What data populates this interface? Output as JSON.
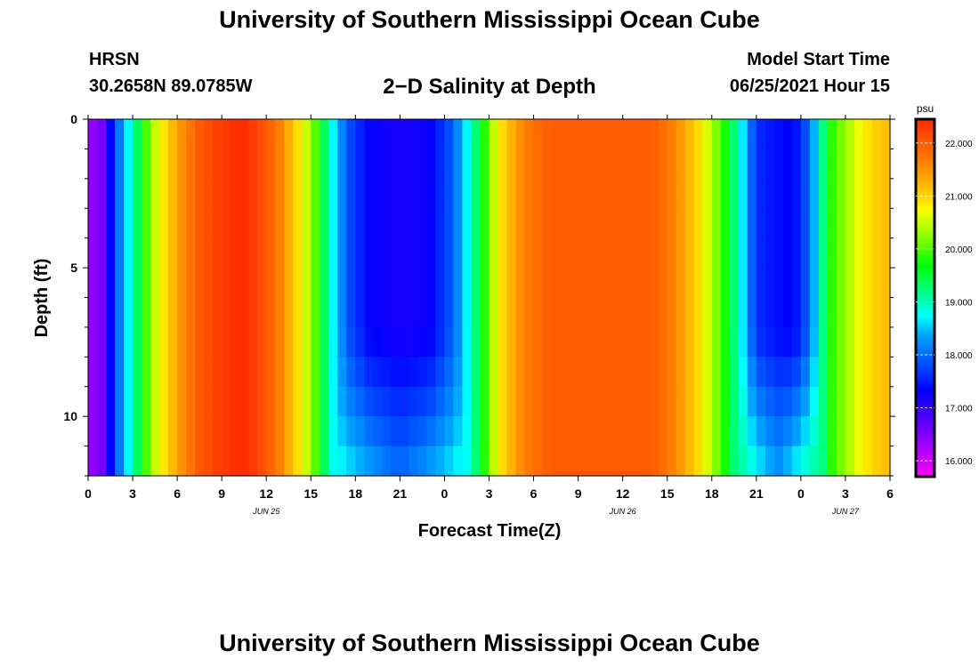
{
  "header": {
    "title": "University of Southern Mississippi Ocean Cube",
    "station": "HRSN",
    "coordinates": "30.2658N  89.0785W",
    "plot_title": "2−D Salinity at Depth",
    "model_start_label": "Model Start Time",
    "model_start_value": "06/25/2021 Hour 15"
  },
  "footer": {
    "title": "University of Southern Mississippi Ocean Cube"
  },
  "chart_data": {
    "type": "heatmap",
    "title": "2-D Salinity at Depth",
    "xlabel": "Forecast Time(Z)",
    "ylabel": "Depth (ft)",
    "x_range_hours": [
      0,
      54
    ],
    "y_range_ft": [
      0,
      12
    ],
    "x_tick_labels": [
      "0",
      "3",
      "6",
      "9",
      "12",
      "15",
      "18",
      "21",
      "0",
      "3",
      "6",
      "9",
      "12",
      "15",
      "18",
      "21",
      "0",
      "3",
      "6"
    ],
    "x_tick_hours": [
      0,
      3,
      6,
      9,
      12,
      15,
      18,
      21,
      24,
      27,
      30,
      33,
      36,
      39,
      42,
      45,
      48,
      51,
      54
    ],
    "date_labels": [
      {
        "text": "JUN 25",
        "hour": 12
      },
      {
        "text": "JUN 26",
        "hour": 36
      },
      {
        "text": "JUN 27",
        "hour": 51
      }
    ],
    "y_tick_values": [
      0,
      5,
      10
    ],
    "y_tick_labels": [
      "0",
      "5",
      "10"
    ],
    "colorbar": {
      "unit": "psu",
      "min": 15.7,
      "max": 22.45,
      "tick_values": [
        16,
        17,
        18,
        19,
        20,
        21,
        22
      ],
      "tick_labels": [
        "16.000",
        "17.000",
        "18.000",
        "19.000",
        "20.000",
        "21.000",
        "22.000"
      ]
    },
    "surface_salinity_profile": {
      "hours": [
        0,
        1,
        1.6,
        2.2,
        3,
        3.7,
        4.5,
        5.5,
        6.5,
        7.5,
        8.5,
        9.5,
        10.3,
        11,
        12,
        13,
        14,
        15,
        15.6,
        16.2,
        16.8,
        17.6,
        19,
        21,
        23,
        24.5,
        25.3,
        25.8,
        26.5,
        27.2,
        28,
        29,
        30,
        31,
        32,
        33,
        35,
        37,
        38,
        39,
        40,
        41,
        42,
        43,
        43.8,
        44.3,
        45,
        47,
        48,
        48.8,
        49.4,
        50,
        51,
        52,
        53,
        54
      ],
      "values": [
        16.3,
        16.6,
        17.5,
        18.2,
        19.0,
        19.8,
        20.5,
        21.1,
        21.6,
        22.0,
        22.2,
        22.35,
        22.45,
        22.35,
        22.0,
        21.6,
        21.0,
        20.3,
        19.7,
        19.0,
        18.4,
        17.8,
        17.3,
        17.15,
        17.25,
        17.9,
        18.5,
        19.0,
        19.6,
        20.4,
        21.0,
        21.5,
        21.8,
        21.95,
        22.0,
        22.0,
        22.0,
        22.0,
        21.95,
        21.75,
        21.4,
        21.0,
        20.4,
        19.7,
        19.0,
        18.4,
        17.6,
        17.3,
        17.5,
        18.3,
        19.1,
        19.8,
        20.3,
        20.7,
        21.0,
        21.2
      ]
    },
    "low_salinity_bands": [
      {
        "center_hour": 21,
        "half_width_hours": 6,
        "deep_half_width_hours": 4,
        "deep_value": 18.0
      },
      {
        "center_hour": 46.4,
        "half_width_hours": 2.8,
        "deep_half_width_hours": 2.2,
        "deep_value": 18.3
      }
    ]
  }
}
